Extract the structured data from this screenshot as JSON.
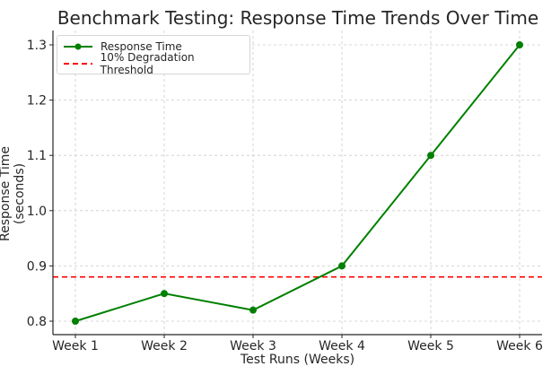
{
  "chart_data": {
    "type": "line",
    "title": "Benchmark Testing: Response Time Trends Over Time",
    "xlabel": "Test Runs (Weeks)",
    "ylabel": "Response Time (seconds)",
    "categories": [
      "Week 1",
      "Week 2",
      "Week 3",
      "Week 4",
      "Week 5",
      "Week 6"
    ],
    "series": [
      {
        "name": "Response Time",
        "values": [
          0.8,
          0.85,
          0.82,
          0.9,
          1.1,
          1.3
        ],
        "color": "#008000",
        "marker": "circle",
        "linestyle": "solid"
      }
    ],
    "reference_lines": [
      {
        "name": "10% Degradation Threshold",
        "y": 0.88,
        "color": "#ff0000",
        "linestyle": "dashed"
      }
    ],
    "yticks": [
      "0.8",
      "0.9",
      "1.0",
      "1.1",
      "1.2",
      "1.3"
    ],
    "ylim": [
      0.775,
      1.325
    ],
    "grid": true,
    "legend_position": "upper left"
  },
  "legend": {
    "items": [
      {
        "label": "Response Time"
      },
      {
        "label": "10% Degradation Threshold"
      }
    ]
  }
}
